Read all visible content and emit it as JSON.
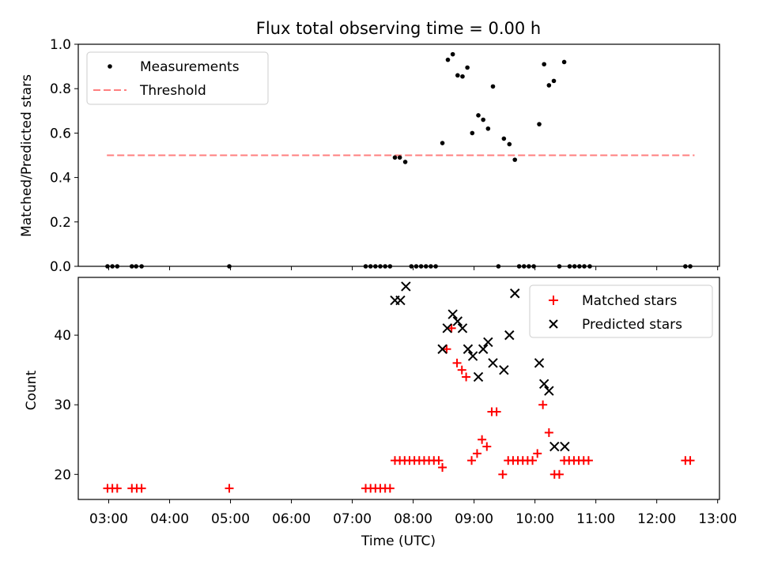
{
  "chart_data": {
    "title": "Flux total observing time = 0.00 h",
    "x_ticks": [
      "03:00",
      "04:00",
      "05:00",
      "06:00",
      "07:00",
      "08:00",
      "09:00",
      "10:00",
      "11:00",
      "12:00",
      "13:00"
    ],
    "xlabel": "Time (UTC)",
    "xlim_hours": [
      2.5,
      13.03
    ],
    "top": {
      "type": "scatter",
      "ylabel": "Matched/Predicted stars",
      "ylim": [
        0,
        1.0
      ],
      "y_ticks": [
        "0.0",
        "0.2",
        "0.4",
        "0.6",
        "0.8",
        "1.0"
      ],
      "y_tick_values": [
        0,
        0.2,
        0.4,
        0.6,
        0.8,
        1.0
      ],
      "legend": [
        "Measurements",
        "Threshold"
      ],
      "threshold": {
        "value": 0.5,
        "x_start": 2.97,
        "x_end": 12.62,
        "color": "#ff7f7f"
      },
      "measurements": [
        [
          2.98,
          0
        ],
        [
          3.06,
          0
        ],
        [
          3.14,
          0
        ],
        [
          3.38,
          0
        ],
        [
          3.45,
          0
        ],
        [
          3.54,
          0
        ],
        [
          4.98,
          0
        ],
        [
          7.22,
          0
        ],
        [
          7.3,
          0
        ],
        [
          7.38,
          0
        ],
        [
          7.46,
          0
        ],
        [
          7.54,
          0
        ],
        [
          7.62,
          0
        ],
        [
          7.7,
          0.49
        ],
        [
          7.78,
          0.49
        ],
        [
          7.87,
          0.47
        ],
        [
          7.97,
          0
        ],
        [
          8.05,
          0
        ],
        [
          8.13,
          0
        ],
        [
          8.21,
          0
        ],
        [
          8.29,
          0
        ],
        [
          8.37,
          0
        ],
        [
          8.48,
          0.555
        ],
        [
          8.57,
          0.93
        ],
        [
          8.65,
          0.955
        ],
        [
          8.73,
          0.86
        ],
        [
          8.81,
          0.855
        ],
        [
          8.89,
          0.895
        ],
        [
          8.97,
          0.6
        ],
        [
          9.07,
          0.68
        ],
        [
          9.15,
          0.66
        ],
        [
          9.23,
          0.62
        ],
        [
          9.31,
          0.81
        ],
        [
          9.4,
          0
        ],
        [
          9.49,
          0.575
        ],
        [
          9.58,
          0.55
        ],
        [
          9.67,
          0.48
        ],
        [
          9.74,
          0
        ],
        [
          9.82,
          0
        ],
        [
          9.9,
          0
        ],
        [
          9.98,
          0
        ],
        [
          10.07,
          0.64
        ],
        [
          10.15,
          0.91
        ],
        [
          10.23,
          0.815
        ],
        [
          10.31,
          0.835
        ],
        [
          10.4,
          0
        ],
        [
          10.48,
          0.92
        ],
        [
          10.57,
          0
        ],
        [
          10.65,
          0
        ],
        [
          10.73,
          0
        ],
        [
          10.81,
          0
        ],
        [
          10.9,
          0
        ],
        [
          12.47,
          0
        ],
        [
          12.55,
          0
        ]
      ]
    },
    "bottom": {
      "type": "scatter",
      "ylabel": "Count",
      "ylim": [
        16.4,
        48.3
      ],
      "y_ticks": [
        "20",
        "30",
        "40"
      ],
      "y_tick_values": [
        20,
        30,
        40
      ],
      "legend": [
        "Matched stars",
        "Predicted stars"
      ],
      "colors": {
        "matched": "#ff0000",
        "predicted": "#000000"
      },
      "matched": [
        [
          2.98,
          18
        ],
        [
          3.06,
          18
        ],
        [
          3.14,
          18
        ],
        [
          3.38,
          18
        ],
        [
          3.46,
          18
        ],
        [
          3.54,
          18
        ],
        [
          4.98,
          18
        ],
        [
          7.22,
          18
        ],
        [
          7.3,
          18
        ],
        [
          7.38,
          18
        ],
        [
          7.46,
          18
        ],
        [
          7.54,
          18
        ],
        [
          7.62,
          18
        ],
        [
          7.7,
          22
        ],
        [
          7.78,
          22
        ],
        [
          7.86,
          22
        ],
        [
          7.94,
          22
        ],
        [
          8.02,
          22
        ],
        [
          8.1,
          22
        ],
        [
          8.18,
          22
        ],
        [
          8.26,
          22
        ],
        [
          8.34,
          22
        ],
        [
          8.42,
          22
        ],
        [
          8.48,
          21
        ],
        [
          8.55,
          38
        ],
        [
          8.63,
          41
        ],
        [
          8.72,
          36
        ],
        [
          8.8,
          35
        ],
        [
          8.87,
          34
        ],
        [
          8.96,
          22
        ],
        [
          9.05,
          23
        ],
        [
          9.13,
          25
        ],
        [
          9.21,
          24
        ],
        [
          9.29,
          29
        ],
        [
          9.37,
          29
        ],
        [
          9.47,
          20
        ],
        [
          9.56,
          22
        ],
        [
          9.64,
          22
        ],
        [
          9.72,
          22
        ],
        [
          9.8,
          22
        ],
        [
          9.88,
          22
        ],
        [
          9.96,
          22
        ],
        [
          10.04,
          23
        ],
        [
          10.13,
          30
        ],
        [
          10.23,
          26
        ],
        [
          10.32,
          20
        ],
        [
          10.4,
          20
        ],
        [
          10.48,
          22
        ],
        [
          10.56,
          22
        ],
        [
          10.64,
          22
        ],
        [
          10.72,
          22
        ],
        [
          10.8,
          22
        ],
        [
          10.88,
          22
        ],
        [
          12.47,
          22
        ],
        [
          12.55,
          22
        ]
      ],
      "predicted": [
        [
          7.7,
          45
        ],
        [
          7.79,
          45
        ],
        [
          7.88,
          47
        ],
        [
          8.48,
          38
        ],
        [
          8.56,
          41
        ],
        [
          8.65,
          43
        ],
        [
          8.73,
          42
        ],
        [
          8.81,
          41
        ],
        [
          8.9,
          38
        ],
        [
          8.98,
          37
        ],
        [
          9.07,
          34
        ],
        [
          9.15,
          38
        ],
        [
          9.23,
          39
        ],
        [
          9.31,
          36
        ],
        [
          9.49,
          35
        ],
        [
          9.58,
          40
        ],
        [
          9.67,
          46
        ],
        [
          10.07,
          36
        ],
        [
          10.15,
          33
        ],
        [
          10.23,
          32
        ],
        [
          10.32,
          24
        ],
        [
          10.49,
          24
        ]
      ]
    }
  }
}
